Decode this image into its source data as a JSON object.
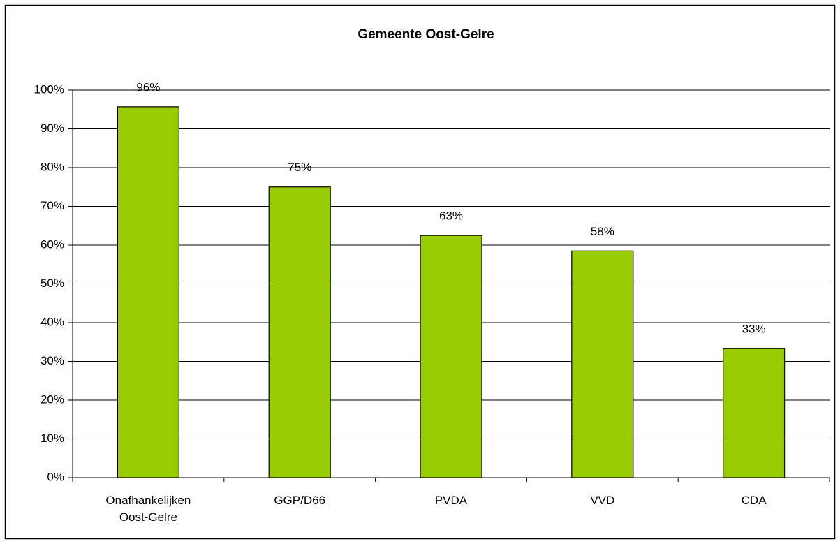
{
  "chart_data": {
    "type": "bar",
    "title": "Gemeente Oost-Gelre",
    "categories": [
      "Onafhankelijken Oost-Gelre",
      "GGP/D66",
      "PVDA",
      "VVD",
      "CDA"
    ],
    "values": [
      95.7,
      75,
      62.5,
      58.5,
      33.3
    ],
    "value_labels": [
      "96%",
      "75%",
      "63%",
      "58%",
      "33%"
    ],
    "color": "#99cc00",
    "ylim": [
      0,
      100
    ],
    "yticks": [
      {
        "value": 0,
        "label": "0%"
      },
      {
        "value": 10,
        "label": "10%"
      },
      {
        "value": 20,
        "label": "20%"
      },
      {
        "value": 30,
        "label": "30%"
      },
      {
        "value": 40,
        "label": "40%"
      },
      {
        "value": 50,
        "label": "50%"
      },
      {
        "value": 60,
        "label": "60%"
      },
      {
        "value": 70,
        "label": "70%"
      },
      {
        "value": 80,
        "label": "80%"
      },
      {
        "value": 90,
        "label": "90%"
      },
      {
        "value": 100,
        "label": "100%"
      }
    ],
    "grid": true
  }
}
